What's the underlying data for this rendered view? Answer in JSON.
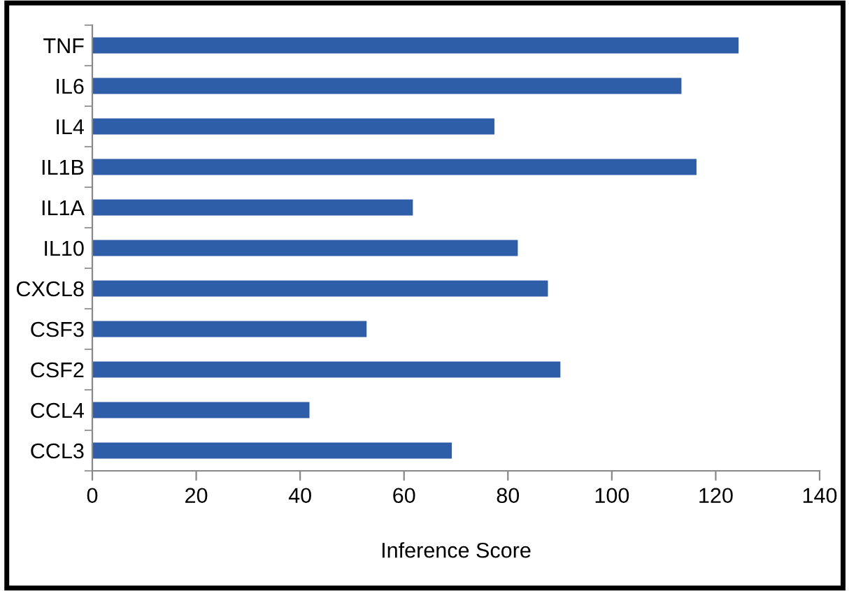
{
  "chart_data": {
    "type": "bar",
    "orientation": "horizontal",
    "xlabel": "Inference Score",
    "categories": [
      "TNF",
      "IL6",
      "IL4",
      "IL1B",
      "IL1A",
      "IL10",
      "CXCL8",
      "CSF3",
      "CSF2",
      "CCL4",
      "CCL3"
    ],
    "values": [
      124.4,
      113.4,
      77.4,
      116.3,
      61.7,
      81.9,
      87.7,
      52.8,
      90.1,
      41.8,
      69.2
    ],
    "color": "#2e5ea8",
    "xlim": [
      0,
      140
    ],
    "xticks": [
      0,
      20,
      40,
      60,
      80,
      100,
      120,
      140
    ],
    "grid": false,
    "legend": false
  }
}
